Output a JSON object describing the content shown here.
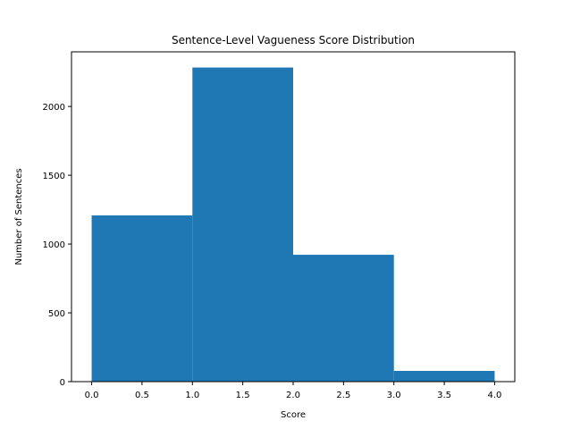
{
  "chart_data": {
    "type": "bar",
    "title": "Sentence-Level Vagueness Score Distribution",
    "xlabel": "Score",
    "ylabel": "Number of Sentences",
    "bins": [
      {
        "x0": 0.0,
        "x1": 1.0,
        "value": 1208
      },
      {
        "x0": 1.0,
        "x1": 2.0,
        "value": 2283
      },
      {
        "x0": 2.0,
        "x1": 3.0,
        "value": 922
      },
      {
        "x0": 3.0,
        "x1": 4.0,
        "value": 78
      }
    ],
    "xlim": [
      -0.2,
      4.2
    ],
    "ylim": [
      0,
      2397
    ],
    "xticks": [
      "0.0",
      "0.5",
      "1.0",
      "1.5",
      "2.0",
      "2.5",
      "3.0",
      "3.5",
      "4.0"
    ],
    "yticks": [
      "0",
      "500",
      "1000",
      "1500",
      "2000"
    ],
    "bar_color": "#1f77b4",
    "grid": false,
    "legend": "none"
  }
}
